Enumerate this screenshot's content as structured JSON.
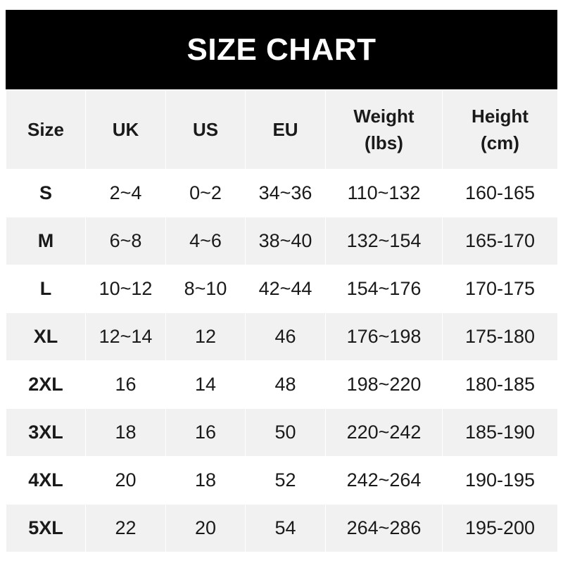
{
  "title": "SIZE CHART",
  "headers": [
    "Size",
    "UK",
    "US",
    "EU",
    "Weight\n(lbs)",
    "Height\n(cm)"
  ],
  "header_lines": {
    "weight": [
      "Weight",
      "(lbs)"
    ],
    "height": [
      "Height",
      "(cm)"
    ]
  },
  "rows": [
    [
      "S",
      "2~4",
      "0~2",
      "34~36",
      "110~132",
      "160-165"
    ],
    [
      "M",
      "6~8",
      "4~6",
      "38~40",
      "132~154",
      "165-170"
    ],
    [
      "L",
      "10~12",
      "8~10",
      "42~44",
      "154~176",
      "170-175"
    ],
    [
      "XL",
      "12~14",
      "12",
      "46",
      "176~198",
      "175-180"
    ],
    [
      "2XL",
      "16",
      "14",
      "48",
      "198~220",
      "180-185"
    ],
    [
      "3XL",
      "18",
      "16",
      "50",
      "220~242",
      "185-190"
    ],
    [
      "4XL",
      "20",
      "18",
      "52",
      "242~264",
      "190-195"
    ],
    [
      "5XL",
      "22",
      "20",
      "54",
      "264~286",
      "195-200"
    ]
  ],
  "colors": {
    "banner": "#000000",
    "row_alt": "#f1f1f1",
    "text": "#1a1a1a"
  }
}
